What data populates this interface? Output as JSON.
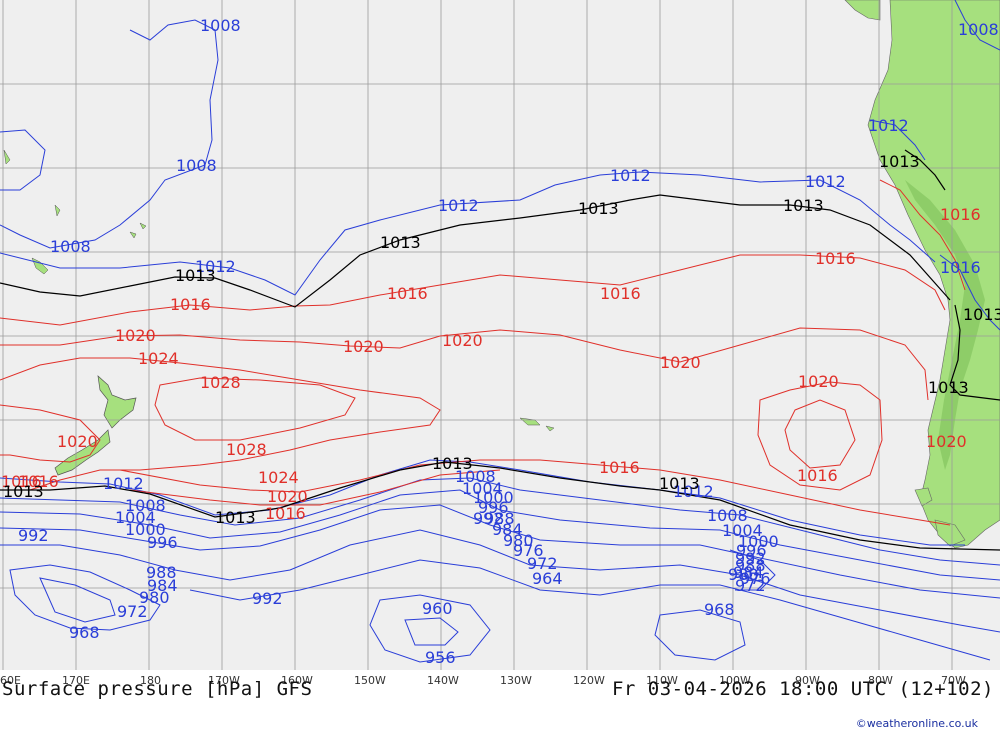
{
  "map": {
    "title": "Surface pressure [hPa] GFS",
    "valid_time": "Fr 03-04-2026 18:00 UTC (12+102)",
    "credit": "©weatheronline.co.uk",
    "longitude_labels": [
      "60E",
      "170E",
      "180",
      "170W",
      "160W",
      "150W",
      "140W",
      "130W",
      "120W",
      "110W",
      "100W",
      "90W",
      "80W",
      "70W"
    ],
    "colors": {
      "ocean": "#efefef",
      "land": "#a6e07e",
      "grid": "#9a9a9a",
      "low": "#2a3ed8",
      "high": "#e0302a",
      "ref": "#000000"
    },
    "isobar_labels": {
      "blue": [
        "1008",
        "1008",
        "1008",
        "1012",
        "1012",
        "1012",
        "1012",
        "1012",
        "1008",
        "1004",
        "1000",
        "996",
        "992",
        "988",
        "984",
        "980",
        "972",
        "968",
        "1008",
        "1004",
        "1000",
        "996",
        "992",
        "988",
        "984",
        "980",
        "976",
        "972",
        "964",
        "960",
        "956",
        "992",
        "1008",
        "1004",
        "1000",
        "996",
        "992",
        "988",
        "984",
        "980",
        "976",
        "972",
        "968",
        "1008",
        "1012",
        "1012",
        "1016"
      ],
      "red": [
        "1016",
        "1016",
        "1016",
        "1016",
        "1020",
        "1020",
        "1020",
        "1020",
        "1024",
        "1028",
        "1028",
        "1024",
        "1020",
        "1016",
        "1020",
        "1016",
        "1016",
        "1016",
        "1016",
        "1020",
        "1020",
        "1016"
      ],
      "black": [
        "1013",
        "1013",
        "1013",
        "1013",
        "1013",
        "1013",
        "1013",
        "1013",
        "1013",
        "1013",
        "1013"
      ]
    }
  }
}
